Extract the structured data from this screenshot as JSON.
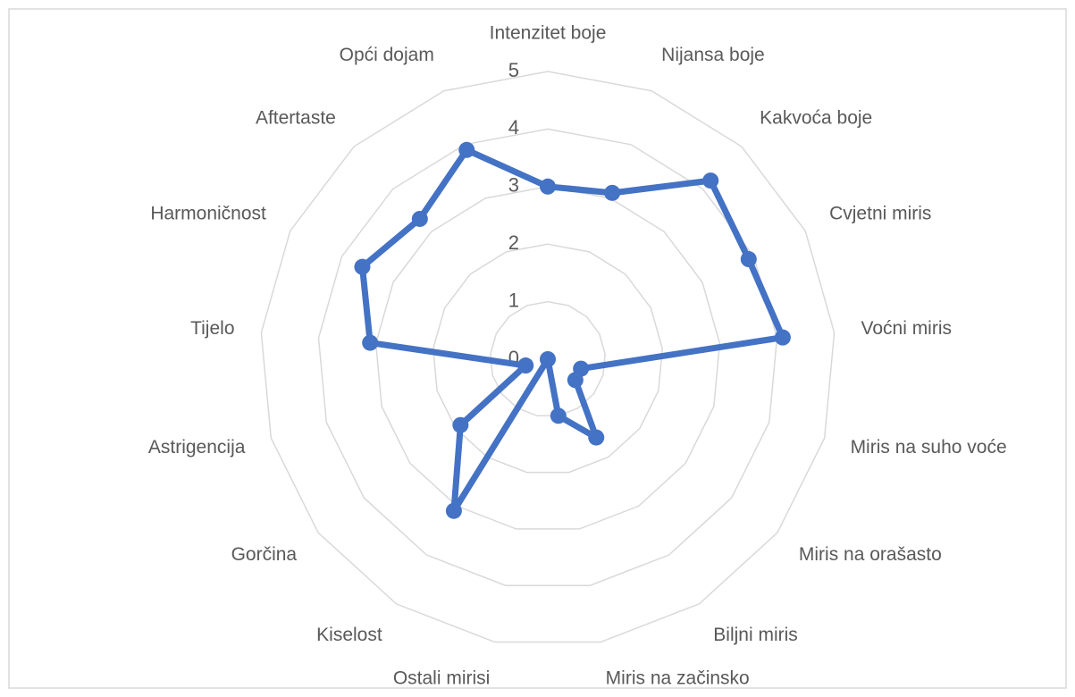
{
  "chart_data": {
    "type": "radar",
    "categories": [
      "Intenzitet boje",
      "Nijansa boje",
      "Kakvoća boje",
      "Cvjetni miris",
      "Voćni miris",
      "Miris na suho voće",
      "Miris na orašasto",
      "Biljni miris",
      "Miris na začinsko",
      "Ostali mirisi",
      "Kiselost",
      "Gorčina",
      "Astrigencija",
      "Tijelo",
      "Harmoničnost",
      "Aftertaste",
      "Opći dojam"
    ],
    "values": [
      3,
      3.1,
      4.2,
      3.9,
      4.1,
      0.6,
      0.6,
      1.6,
      1.0,
      0,
      3.1,
      1.9,
      0.4,
      3.1,
      3.6,
      3.3,
      3.9
    ],
    "color": "#4472c4",
    "ylim": [
      0,
      5
    ],
    "yticks": [
      0,
      1,
      2,
      3,
      4,
      5
    ],
    "grid": true
  }
}
